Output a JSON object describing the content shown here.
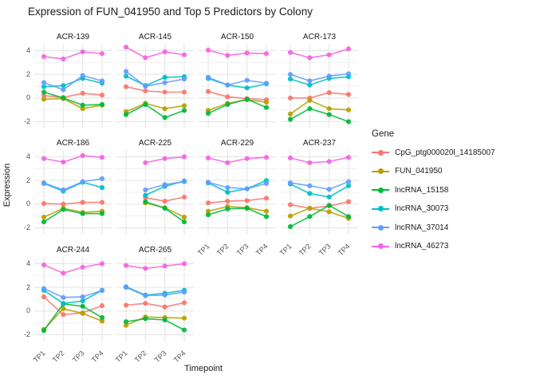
{
  "title": "Expression of FUN_041950 and Top 5 Predictors by Colony",
  "chart_data": {
    "type": "line",
    "facet_by": "Colony",
    "x": [
      "TP1",
      "TP2",
      "TP3",
      "TP4"
    ],
    "xlabel": "Timepoint",
    "ylabel": "Expression",
    "yticks": [
      4,
      2,
      0,
      -2
    ],
    "ylim": [
      -2.6,
      4.6
    ],
    "grid": true,
    "legend_title": "Gene",
    "legend_position": "right",
    "series_meta": [
      {
        "name": "CpG_ptg000020l_14185007",
        "color": "#F8766D"
      },
      {
        "name": "FUN_041950",
        "color": "#B79F00"
      },
      {
        "name": "lncRNA_15158",
        "color": "#00BA38"
      },
      {
        "name": "lncRNA_30073",
        "color": "#00BFC4"
      },
      {
        "name": "lncRNA_37014",
        "color": "#619CFF"
      },
      {
        "name": "lncRNA_46273",
        "color": "#F564E2"
      }
    ],
    "facets": [
      {
        "name": "ACR-139",
        "values": [
          [
            0.2,
            0.05,
            0.4,
            0.25
          ],
          [
            -0.1,
            -0.05,
            -0.9,
            -0.6
          ],
          [
            0.5,
            0.0,
            -0.6,
            -0.55
          ],
          [
            0.95,
            1.05,
            1.65,
            1.25
          ],
          [
            1.3,
            0.7,
            1.9,
            1.45
          ],
          [
            3.5,
            3.3,
            3.9,
            3.75
          ]
        ]
      },
      {
        "name": "ACR-145",
        "values": [
          [
            0.95,
            0.6,
            0.5,
            0.5
          ],
          [
            -1.15,
            -0.45,
            -0.9,
            -0.65
          ],
          [
            -1.4,
            -0.55,
            -1.65,
            -1.05
          ],
          [
            1.85,
            1.05,
            1.75,
            1.8
          ],
          [
            2.25,
            1.0,
            1.3,
            1.6
          ],
          [
            4.3,
            3.4,
            3.9,
            3.65
          ]
        ]
      },
      {
        "name": "ACR-150",
        "values": [
          [
            0.55,
            0.1,
            -0.05,
            -0.15
          ],
          [
            -1.05,
            -0.45,
            -0.15,
            -0.35
          ],
          [
            -1.3,
            -0.55,
            -0.1,
            -0.8
          ],
          [
            1.65,
            1.1,
            0.85,
            1.2
          ],
          [
            1.75,
            1.1,
            1.5,
            1.25
          ],
          [
            4.05,
            3.6,
            3.8,
            3.75
          ]
        ]
      },
      {
        "name": "ACR-173",
        "values": [
          [
            0.0,
            0.0,
            0.45,
            0.3
          ],
          [
            -1.35,
            -0.2,
            -0.9,
            -1.0
          ],
          [
            -1.8,
            -0.9,
            -1.4,
            -2.0
          ],
          [
            1.6,
            1.1,
            1.65,
            1.8
          ],
          [
            2.0,
            1.45,
            1.85,
            2.05
          ],
          [
            3.85,
            3.4,
            3.65,
            4.15
          ]
        ]
      },
      {
        "name": "ACR-186",
        "values": [
          [
            0.05,
            0.0,
            0.15,
            0.15
          ],
          [
            -1.1,
            -0.35,
            -0.7,
            -0.6
          ],
          [
            -1.5,
            -0.45,
            -0.8,
            -0.8
          ],
          [
            1.75,
            1.1,
            1.85,
            1.4
          ],
          [
            1.8,
            1.2,
            1.9,
            2.15
          ],
          [
            3.85,
            3.55,
            4.1,
            3.95
          ]
        ]
      },
      {
        "name": "ACR-225",
        "values": [
          [
            null,
            0.55,
            0.25,
            0.6
          ],
          [
            null,
            0.1,
            -0.3,
            -1.1
          ],
          [
            null,
            0.2,
            -0.35,
            -1.5
          ],
          [
            null,
            0.75,
            1.5,
            1.95
          ],
          [
            null,
            1.2,
            1.65,
            1.9
          ],
          [
            null,
            3.5,
            3.85,
            4.0
          ]
        ]
      },
      {
        "name": "ACR-229",
        "values": [
          [
            0.1,
            0.25,
            0.3,
            0.5
          ],
          [
            -0.6,
            -0.2,
            -0.3,
            -0.6
          ],
          [
            -0.9,
            -0.4,
            -0.35,
            -1.05
          ],
          [
            1.8,
            1.0,
            1.3,
            2.0
          ],
          [
            1.85,
            1.4,
            1.3,
            1.75
          ],
          [
            3.9,
            3.5,
            3.85,
            3.95
          ]
        ]
      },
      {
        "name": "ACR-237",
        "values": [
          [
            -0.05,
            -0.35,
            -0.15,
            0.2
          ],
          [
            -1.0,
            -0.35,
            -0.65,
            -1.2
          ],
          [
            -1.9,
            -1.05,
            -0.1,
            -1.05
          ],
          [
            1.7,
            0.9,
            0.6,
            1.55
          ],
          [
            1.8,
            1.55,
            1.25,
            1.9
          ],
          [
            3.9,
            3.5,
            3.6,
            3.95
          ]
        ]
      },
      {
        "name": "ACR-244",
        "values": [
          [
            1.2,
            -0.3,
            -0.15,
            0.45
          ],
          [
            -1.55,
            0.2,
            -0.2,
            -0.85
          ],
          [
            -1.65,
            0.6,
            0.4,
            -0.55
          ],
          [
            1.75,
            0.65,
            0.85,
            1.75
          ],
          [
            1.9,
            1.15,
            1.2,
            1.75
          ],
          [
            3.9,
            3.2,
            3.7,
            4.0
          ]
        ]
      },
      {
        "name": "ACR-265",
        "values": [
          [
            0.5,
            0.65,
            0.35,
            0.7
          ],
          [
            -1.2,
            -0.5,
            -0.55,
            -0.6
          ],
          [
            -0.9,
            -0.65,
            -0.75,
            -1.6
          ],
          [
            2.05,
            1.35,
            1.5,
            1.75
          ],
          [
            2.0,
            1.3,
            1.35,
            1.6
          ],
          [
            3.85,
            3.6,
            3.8,
            4.0
          ]
        ]
      }
    ]
  }
}
